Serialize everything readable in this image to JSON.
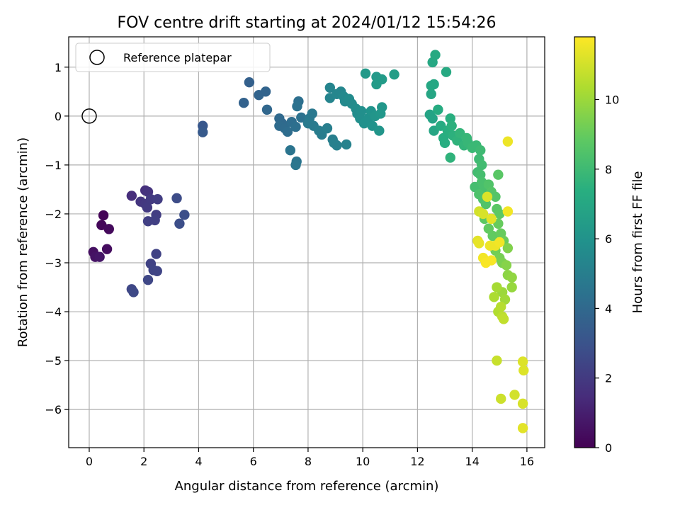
{
  "chart_data": {
    "type": "scatter",
    "title": "FOV centre drift starting at 2024/01/12 15:54:26",
    "xlabel": "Angular distance from reference (arcmin)",
    "ylabel": "Rotation from reference (arcmin)",
    "xlim": [
      -0.75,
      16.65
    ],
    "ylim": [
      -6.78,
      1.62
    ],
    "xticks": [
      0,
      2,
      4,
      6,
      8,
      10,
      12,
      14,
      16
    ],
    "yticks": [
      1,
      0,
      -1,
      -2,
      -3,
      -4,
      -5,
      -6
    ],
    "grid": true,
    "legend": {
      "placement": "top-left",
      "entries": [
        "Reference platepar"
      ]
    },
    "reference_point": {
      "x": 0,
      "y": 0
    },
    "colorbar": {
      "label": "Hours from first FF file",
      "colormap": "viridis",
      "range": [
        0,
        11.8
      ],
      "ticks": [
        0,
        2,
        4,
        6,
        8,
        10
      ]
    },
    "points": [
      {
        "x": 0.52,
        "y": -2.03,
        "c": 0.1
      },
      {
        "x": 0.45,
        "y": -2.23,
        "c": 0.2
      },
      {
        "x": 0.72,
        "y": -2.31,
        "c": 0.3
      },
      {
        "x": 0.65,
        "y": -2.72,
        "c": 0.4
      },
      {
        "x": 0.15,
        "y": -2.78,
        "c": 0.5
      },
      {
        "x": 0.22,
        "y": -2.88,
        "c": 0.6
      },
      {
        "x": 0.38,
        "y": -2.88,
        "c": 0.7
      },
      {
        "x": 1.55,
        "y": -1.63,
        "c": 1.5
      },
      {
        "x": 2.05,
        "y": -1.52,
        "c": 1.6
      },
      {
        "x": 2.15,
        "y": -1.55,
        "c": 1.7
      },
      {
        "x": 1.88,
        "y": -1.75,
        "c": 1.8
      },
      {
        "x": 2.05,
        "y": -1.8,
        "c": 1.9
      },
      {
        "x": 2.12,
        "y": -1.87,
        "c": 2.0
      },
      {
        "x": 2.25,
        "y": -1.7,
        "c": 2.0
      },
      {
        "x": 2.5,
        "y": -1.7,
        "c": 2.1
      },
      {
        "x": 2.45,
        "y": -2.02,
        "c": 2.1
      },
      {
        "x": 2.15,
        "y": -2.15,
        "c": 2.2
      },
      {
        "x": 2.4,
        "y": -2.13,
        "c": 2.2
      },
      {
        "x": 2.45,
        "y": -2.82,
        "c": 2.3
      },
      {
        "x": 2.25,
        "y": -3.02,
        "c": 2.3
      },
      {
        "x": 2.35,
        "y": -3.15,
        "c": 2.4
      },
      {
        "x": 2.48,
        "y": -3.17,
        "c": 2.4
      },
      {
        "x": 2.15,
        "y": -3.35,
        "c": 2.5
      },
      {
        "x": 1.55,
        "y": -3.54,
        "c": 2.5
      },
      {
        "x": 1.62,
        "y": -3.6,
        "c": 2.6
      },
      {
        "x": 3.2,
        "y": -1.68,
        "c": 2.7
      },
      {
        "x": 3.48,
        "y": -2.02,
        "c": 2.8
      },
      {
        "x": 3.3,
        "y": -2.2,
        "c": 2.8
      },
      {
        "x": 4.15,
        "y": -0.2,
        "c": 3.2
      },
      {
        "x": 4.15,
        "y": -0.33,
        "c": 3.3
      },
      {
        "x": 5.85,
        "y": 0.69,
        "c": 3.6
      },
      {
        "x": 5.65,
        "y": 0.27,
        "c": 3.7
      },
      {
        "x": 6.45,
        "y": 0.5,
        "c": 3.8
      },
      {
        "x": 6.2,
        "y": 0.43,
        "c": 3.8
      },
      {
        "x": 6.5,
        "y": 0.13,
        "c": 3.9
      },
      {
        "x": 6.95,
        "y": -0.05,
        "c": 4.0
      },
      {
        "x": 7.05,
        "y": -0.15,
        "c": 4.0
      },
      {
        "x": 6.95,
        "y": -0.2,
        "c": 4.1
      },
      {
        "x": 7.15,
        "y": -0.25,
        "c": 4.1
      },
      {
        "x": 7.25,
        "y": -0.32,
        "c": 4.2
      },
      {
        "x": 7.4,
        "y": -0.12,
        "c": 4.2
      },
      {
        "x": 7.55,
        "y": -0.22,
        "c": 4.3
      },
      {
        "x": 7.65,
        "y": 0.3,
        "c": 4.3
      },
      {
        "x": 7.6,
        "y": 0.2,
        "c": 4.4
      },
      {
        "x": 7.75,
        "y": -0.03,
        "c": 4.4
      },
      {
        "x": 7.35,
        "y": -0.7,
        "c": 4.5
      },
      {
        "x": 7.58,
        "y": -0.93,
        "c": 4.5
      },
      {
        "x": 7.55,
        "y": -1.0,
        "c": 4.6
      },
      {
        "x": 8.15,
        "y": 0.05,
        "c": 4.7
      },
      {
        "x": 8.05,
        "y": -0.05,
        "c": 4.7
      },
      {
        "x": 8.0,
        "y": -0.15,
        "c": 4.8
      },
      {
        "x": 8.2,
        "y": -0.2,
        "c": 4.8
      },
      {
        "x": 8.4,
        "y": -0.3,
        "c": 4.9
      },
      {
        "x": 8.5,
        "y": -0.38,
        "c": 4.9
      },
      {
        "x": 8.7,
        "y": -0.25,
        "c": 5.0
      },
      {
        "x": 8.9,
        "y": -0.48,
        "c": 5.0
      },
      {
        "x": 8.95,
        "y": -0.55,
        "c": 5.1
      },
      {
        "x": 9.05,
        "y": -0.6,
        "c": 5.1
      },
      {
        "x": 9.4,
        "y": -0.58,
        "c": 5.2
      },
      {
        "x": 8.8,
        "y": 0.58,
        "c": 5.3
      },
      {
        "x": 8.8,
        "y": 0.37,
        "c": 5.3
      },
      {
        "x": 9.05,
        "y": 0.45,
        "c": 5.4
      },
      {
        "x": 9.2,
        "y": 0.5,
        "c": 5.4
      },
      {
        "x": 9.3,
        "y": 0.4,
        "c": 5.5
      },
      {
        "x": 9.35,
        "y": 0.3,
        "c": 5.5
      },
      {
        "x": 9.5,
        "y": 0.35,
        "c": 5.6
      },
      {
        "x": 9.6,
        "y": 0.25,
        "c": 5.6
      },
      {
        "x": 9.75,
        "y": 0.15,
        "c": 5.7
      },
      {
        "x": 9.8,
        "y": 0.05,
        "c": 5.7
      },
      {
        "x": 9.9,
        "y": -0.05,
        "c": 5.8
      },
      {
        "x": 9.95,
        "y": 0.1,
        "c": 5.8
      },
      {
        "x": 10.05,
        "y": -0.15,
        "c": 5.9
      },
      {
        "x": 10.2,
        "y": -0.05,
        "c": 5.9
      },
      {
        "x": 10.3,
        "y": 0.1,
        "c": 6.0
      },
      {
        "x": 10.35,
        "y": -0.2,
        "c": 6.0
      },
      {
        "x": 10.45,
        "y": 0.0,
        "c": 6.1
      },
      {
        "x": 10.6,
        "y": -0.3,
        "c": 6.1
      },
      {
        "x": 10.7,
        "y": 0.18,
        "c": 6.2
      },
      {
        "x": 10.65,
        "y": 0.05,
        "c": 6.2
      },
      {
        "x": 10.1,
        "y": 0.87,
        "c": 6.3
      },
      {
        "x": 10.5,
        "y": 0.8,
        "c": 6.3
      },
      {
        "x": 10.5,
        "y": 0.65,
        "c": 6.4
      },
      {
        "x": 10.7,
        "y": 0.75,
        "c": 6.4
      },
      {
        "x": 11.15,
        "y": 0.85,
        "c": 6.5
      },
      {
        "x": 12.45,
        "y": 0.03,
        "c": 6.8
      },
      {
        "x": 12.55,
        "y": -0.05,
        "c": 6.8
      },
      {
        "x": 12.6,
        "y": -0.3,
        "c": 6.9
      },
      {
        "x": 12.5,
        "y": 0.45,
        "c": 6.9
      },
      {
        "x": 12.6,
        "y": 0.65,
        "c": 7.0
      },
      {
        "x": 12.5,
        "y": 0.62,
        "c": 7.0
      },
      {
        "x": 12.55,
        "y": 1.1,
        "c": 7.0
      },
      {
        "x": 12.65,
        "y": 1.25,
        "c": 7.1
      },
      {
        "x": 13.05,
        "y": 0.9,
        "c": 7.1
      },
      {
        "x": 12.75,
        "y": 0.13,
        "c": 7.2
      },
      {
        "x": 12.85,
        "y": -0.2,
        "c": 7.2
      },
      {
        "x": 12.95,
        "y": -0.45,
        "c": 7.3
      },
      {
        "x": 13.0,
        "y": -0.55,
        "c": 7.3
      },
      {
        "x": 13.1,
        "y": -0.3,
        "c": 7.4
      },
      {
        "x": 13.2,
        "y": -0.05,
        "c": 7.4
      },
      {
        "x": 13.25,
        "y": -0.2,
        "c": 7.5
      },
      {
        "x": 13.3,
        "y": -0.4,
        "c": 7.5
      },
      {
        "x": 13.2,
        "y": -0.85,
        "c": 7.6
      },
      {
        "x": 13.45,
        "y": -0.5,
        "c": 7.6
      },
      {
        "x": 13.55,
        "y": -0.35,
        "c": 7.7
      },
      {
        "x": 13.7,
        "y": -0.6,
        "c": 7.7
      },
      {
        "x": 13.8,
        "y": -0.45,
        "c": 7.8
      },
      {
        "x": 13.85,
        "y": -0.55,
        "c": 7.8
      },
      {
        "x": 14.0,
        "y": -0.65,
        "c": 7.9
      },
      {
        "x": 14.15,
        "y": -0.6,
        "c": 7.9
      },
      {
        "x": 14.3,
        "y": -0.7,
        "c": 8.0
      },
      {
        "x": 14.25,
        "y": -0.88,
        "c": 8.0
      },
      {
        "x": 14.35,
        "y": -1.0,
        "c": 8.1
      },
      {
        "x": 14.2,
        "y": -1.15,
        "c": 8.1
      },
      {
        "x": 14.3,
        "y": -1.2,
        "c": 8.2
      },
      {
        "x": 14.1,
        "y": -1.45,
        "c": 8.2
      },
      {
        "x": 14.35,
        "y": -1.35,
        "c": 8.3
      },
      {
        "x": 14.45,
        "y": -1.5,
        "c": 8.3
      },
      {
        "x": 14.25,
        "y": -1.6,
        "c": 8.4
      },
      {
        "x": 14.4,
        "y": -1.7,
        "c": 8.4
      },
      {
        "x": 14.5,
        "y": -1.8,
        "c": 8.5
      },
      {
        "x": 14.6,
        "y": -1.4,
        "c": 8.5
      },
      {
        "x": 14.7,
        "y": -1.55,
        "c": 8.6
      },
      {
        "x": 14.85,
        "y": -1.65,
        "c": 8.6
      },
      {
        "x": 14.95,
        "y": -1.2,
        "c": 8.7
      },
      {
        "x": 14.9,
        "y": -1.9,
        "c": 8.7
      },
      {
        "x": 15.0,
        "y": -2.0,
        "c": 8.8
      },
      {
        "x": 14.45,
        "y": -2.1,
        "c": 8.8
      },
      {
        "x": 14.6,
        "y": -2.3,
        "c": 8.9
      },
      {
        "x": 14.75,
        "y": -2.45,
        "c": 8.9
      },
      {
        "x": 14.95,
        "y": -2.2,
        "c": 9.0
      },
      {
        "x": 15.05,
        "y": -2.4,
        "c": 9.0
      },
      {
        "x": 15.15,
        "y": -2.55,
        "c": 9.1
      },
      {
        "x": 14.85,
        "y": -2.75,
        "c": 9.2
      },
      {
        "x": 15.0,
        "y": -2.9,
        "c": 9.3
      },
      {
        "x": 15.1,
        "y": -3.0,
        "c": 9.4
      },
      {
        "x": 15.3,
        "y": -2.7,
        "c": 9.5
      },
      {
        "x": 15.25,
        "y": -3.05,
        "c": 9.6
      },
      {
        "x": 15.3,
        "y": -3.25,
        "c": 9.7
      },
      {
        "x": 15.45,
        "y": -3.3,
        "c": 9.8
      },
      {
        "x": 15.45,
        "y": -3.5,
        "c": 9.9
      },
      {
        "x": 15.1,
        "y": -3.6,
        "c": 10.0
      },
      {
        "x": 15.2,
        "y": -3.75,
        "c": 10.1
      },
      {
        "x": 14.9,
        "y": -3.5,
        "c": 10.2
      },
      {
        "x": 14.8,
        "y": -3.7,
        "c": 10.3
      },
      {
        "x": 14.95,
        "y": -4.0,
        "c": 10.4
      },
      {
        "x": 15.05,
        "y": -3.9,
        "c": 10.5
      },
      {
        "x": 15.1,
        "y": -4.1,
        "c": 10.6
      },
      {
        "x": 15.15,
        "y": -4.15,
        "c": 10.7
      },
      {
        "x": 14.9,
        "y": -5.0,
        "c": 10.8
      },
      {
        "x": 15.05,
        "y": -5.78,
        "c": 10.9
      },
      {
        "x": 15.55,
        "y": -5.7,
        "c": 11.0
      },
      {
        "x": 15.85,
        "y": -5.88,
        "c": 11.1
      },
      {
        "x": 15.85,
        "y": -5.02,
        "c": 11.2
      },
      {
        "x": 15.88,
        "y": -5.2,
        "c": 11.2
      },
      {
        "x": 15.85,
        "y": -6.38,
        "c": 11.3
      },
      {
        "x": 14.25,
        "y": -1.95,
        "c": 11.0
      },
      {
        "x": 14.4,
        "y": -2.0,
        "c": 11.1
      },
      {
        "x": 14.55,
        "y": -1.65,
        "c": 11.2
      },
      {
        "x": 14.7,
        "y": -2.1,
        "c": 11.3
      },
      {
        "x": 14.2,
        "y": -2.55,
        "c": 11.3
      },
      {
        "x": 14.25,
        "y": -2.6,
        "c": 11.4
      },
      {
        "x": 14.65,
        "y": -2.65,
        "c": 11.5
      },
      {
        "x": 14.85,
        "y": -2.65,
        "c": 11.5
      },
      {
        "x": 15.0,
        "y": -2.58,
        "c": 11.6
      },
      {
        "x": 14.4,
        "y": -2.9,
        "c": 11.6
      },
      {
        "x": 14.5,
        "y": -3.0,
        "c": 11.7
      },
      {
        "x": 14.7,
        "y": -2.95,
        "c": 11.7
      },
      {
        "x": 15.3,
        "y": -1.95,
        "c": 11.6
      },
      {
        "x": 15.3,
        "y": -0.52,
        "c": 11.5
      }
    ]
  }
}
